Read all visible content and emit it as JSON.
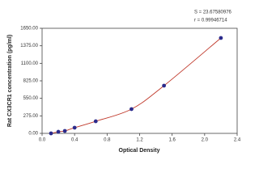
{
  "chart_data": {
    "type": "scatter",
    "x_label": "Optical Density",
    "y_label": "Rat CX3CR1 concentration (pg/ml)",
    "annotations": [
      "S = 23.67580976",
      "r = 0.99946714"
    ],
    "x": [
      0.11,
      0.2,
      0.28,
      0.4,
      0.66,
      1.1,
      1.5,
      2.2
    ],
    "values": [
      0,
      25,
      38,
      89,
      190,
      381,
      749,
      1498
    ],
    "color": "#2b2b8c",
    "curve_color": "#c0392b",
    "xlim": [
      0,
      2.4
    ],
    "ylim": [
      0,
      1650
    ],
    "xticks": [
      {
        "value": 0,
        "label": "0.0"
      },
      0.4,
      0.8,
      1.2,
      1.6,
      {
        "value": 2,
        "label": "2.0"
      },
      2.4
    ],
    "yticks": [
      {
        "value": 0,
        "label": "0.00"
      },
      {
        "value": 275,
        "label": "275.00"
      },
      {
        "value": 550,
        "label": "550.00"
      },
      {
        "value": 825,
        "label": "825.00"
      },
      {
        "value": 1100,
        "label": "1100.00"
      },
      {
        "value": 1375,
        "label": "1375.00"
      },
      {
        "value": 1650,
        "label": "1650.00"
      }
    ]
  }
}
